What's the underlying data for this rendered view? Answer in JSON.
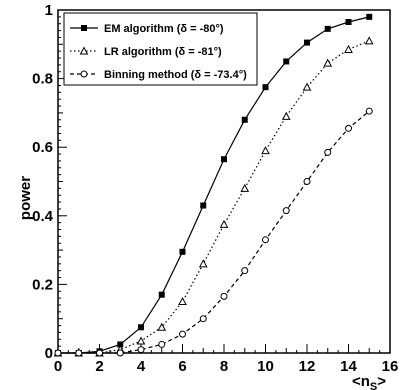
{
  "chart_data": {
    "type": "line",
    "title": "",
    "xlabel": "<n_S>",
    "xlabel_main": "<n",
    "xlabel_sub": "S",
    "xlabel_end": ">",
    "ylabel": "power",
    "xlim": [
      0,
      16
    ],
    "ylim": [
      0,
      1
    ],
    "xticks": [
      "0",
      "2",
      "4",
      "6",
      "8",
      "10",
      "12",
      "14",
      "16"
    ],
    "yticks": [
      "0",
      "0.2",
      "0.4",
      "0.6",
      "0.8",
      "1"
    ],
    "grid": false,
    "legend_position": "top-left",
    "x": [
      0,
      1,
      2,
      3,
      4,
      5,
      6,
      7,
      8,
      9,
      10,
      11,
      12,
      13,
      14,
      15
    ],
    "series": [
      {
        "name": "EM algorithm (δ = -80°)",
        "marker": "filled-square",
        "line_style": "solid",
        "values": [
          0.0,
          0.0,
          0.005,
          0.025,
          0.075,
          0.17,
          0.295,
          0.43,
          0.565,
          0.68,
          0.775,
          0.85,
          0.905,
          0.945,
          0.965,
          0.98
        ]
      },
      {
        "name": "LR algorithm (δ = -81°)",
        "marker": "open-triangle",
        "line_style": "dotted",
        "values": [
          0.0,
          0.0,
          0.0,
          0.01,
          0.035,
          0.075,
          0.15,
          0.26,
          0.375,
          0.48,
          0.59,
          0.69,
          0.775,
          0.845,
          0.885,
          0.91
        ]
      },
      {
        "name": "Binning method (δ = -73.4°)",
        "marker": "open-circle",
        "line_style": "dashed",
        "values": [
          0.0,
          0.0,
          0.0,
          0.0,
          0.01,
          0.025,
          0.055,
          0.1,
          0.165,
          0.24,
          0.33,
          0.415,
          0.5,
          0.585,
          0.655,
          0.705
        ]
      }
    ]
  }
}
